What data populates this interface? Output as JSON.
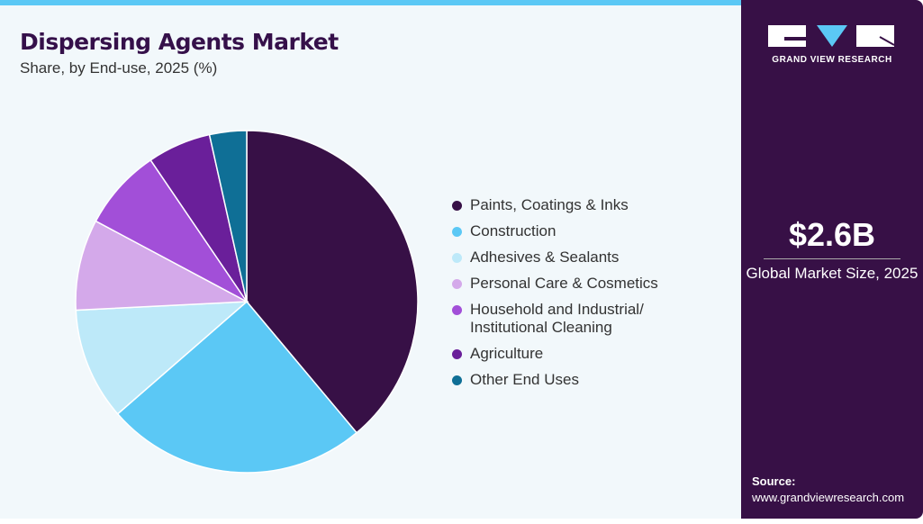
{
  "chart_data": {
    "type": "pie",
    "title": "Dispersing Agents Market",
    "subtitle": "Share, by End-use, 2025 (%)",
    "legend_position": "right",
    "series": [
      {
        "name": "Paints, Coatings & Inks",
        "value": 38.9,
        "color": "#371046"
      },
      {
        "name": "Construction",
        "value": 24.7,
        "color": "#5bc8f5"
      },
      {
        "name": "Adhesives & Sealants",
        "value": 10.6,
        "color": "#bde9f9"
      },
      {
        "name": "Personal Care & Cosmetics",
        "value": 8.6,
        "color": "#d4a9ea"
      },
      {
        "name": "Household and Industrial/ Institutional Cleaning",
        "value": 7.7,
        "color": "#a24fd8"
      },
      {
        "name": "Agriculture",
        "value": 6.0,
        "color": "#6a1f9a"
      },
      {
        "name": "Other End Uses",
        "value": 3.5,
        "color": "#0f6f96"
      }
    ]
  },
  "side": {
    "logo_text": "GRAND VIEW RESEARCH",
    "market_size": "$2.6B",
    "market_label": "Global Market Size, 2025",
    "source_label": "Source:",
    "source_url": "www.grandviewresearch.com"
  }
}
